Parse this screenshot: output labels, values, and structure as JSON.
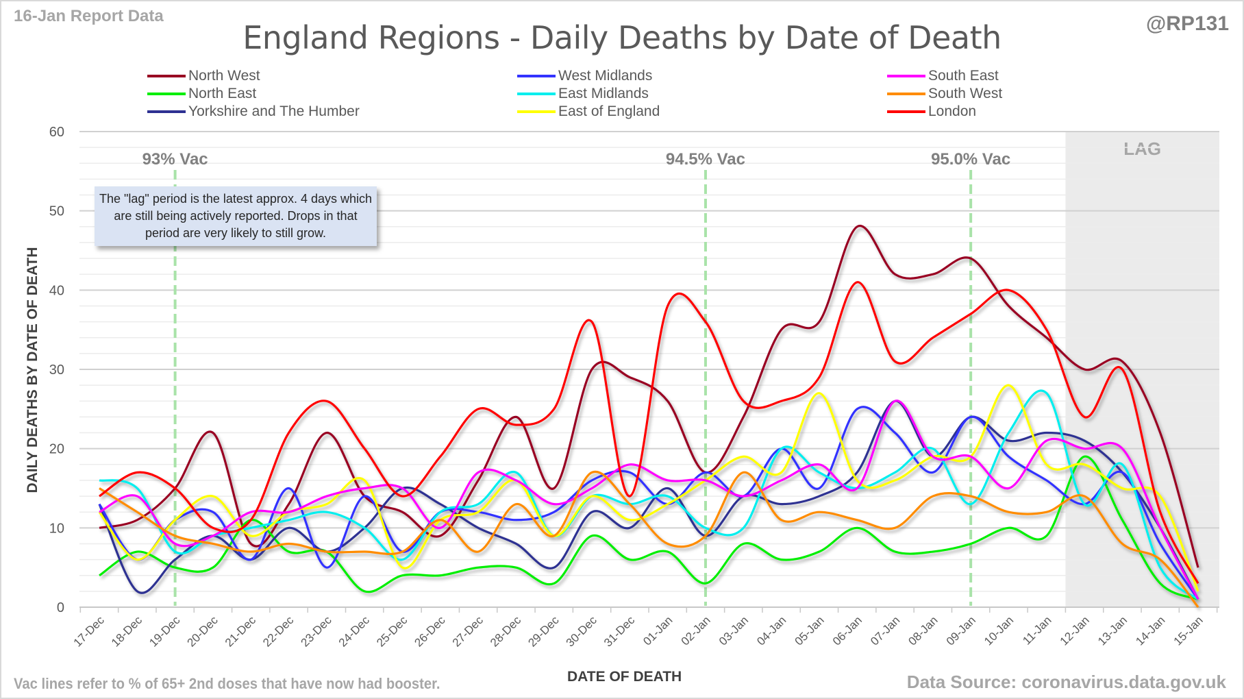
{
  "header": {
    "report_date": "16-Jan Report Data",
    "handle": "@RP131",
    "title": "England Regions - Daily Deaths by Date of Death"
  },
  "footer": {
    "footnote": "Vac lines refer to % of 65+ 2nd doses that have now had booster.",
    "source": "Data Source: coronavirus.data.gov.uk"
  },
  "lag_note": "The \"lag\" period is the latest approx. 4 days which are still being actively reported. Drops in that period are very likely to still grow.",
  "chart_data": {
    "type": "line",
    "title": "England Regions - Daily Deaths by Date of Death",
    "xlabel": "DATE OF DEATH",
    "ylabel": "DAILY DEATHS BY DATE OF DEATH",
    "ylim": [
      0,
      60
    ],
    "yticks": [
      0,
      10,
      20,
      30,
      40,
      50,
      60
    ],
    "minor_grid_step": 2,
    "grid": true,
    "smoothed": true,
    "legend_position": "top",
    "x": [
      "17-Dec",
      "18-Dec",
      "19-Dec",
      "20-Dec",
      "21-Dec",
      "22-Dec",
      "23-Dec",
      "24-Dec",
      "25-Dec",
      "26-Dec",
      "27-Dec",
      "28-Dec",
      "29-Dec",
      "30-Dec",
      "31-Dec",
      "01-Jan",
      "02-Jan",
      "03-Jan",
      "04-Jan",
      "05-Jan",
      "06-Jan",
      "07-Jan",
      "08-Jan",
      "09-Jan",
      "10-Jan",
      "11-Jan",
      "12-Jan",
      "13-Jan",
      "14-Jan",
      "15-Jan"
    ],
    "series": [
      {
        "name": "North West",
        "color": "#990022",
        "values": [
          10,
          11,
          15,
          22,
          8,
          13,
          22,
          14,
          12,
          9,
          16,
          24,
          15,
          30,
          29,
          26,
          17,
          24,
          35,
          36,
          48,
          42,
          42,
          44,
          38,
          34,
          30,
          31,
          22,
          5
        ]
      },
      {
        "name": "North East",
        "color": "#00ee00",
        "values": [
          4,
          7,
          5,
          5,
          11,
          7,
          7,
          2,
          4,
          4,
          5,
          5,
          3,
          9,
          6,
          7,
          3,
          8,
          6,
          7,
          10,
          7,
          7,
          8,
          10,
          9,
          19,
          11,
          3,
          1
        ]
      },
      {
        "name": "Yorkshire and The Humber",
        "color": "#2e3192",
        "values": [
          13,
          2,
          6,
          9,
          6,
          10,
          7,
          10,
          15,
          13,
          10,
          8,
          5,
          12,
          10,
          15,
          9,
          14,
          13,
          14,
          17,
          26,
          19,
          24,
          21,
          22,
          21,
          17,
          10,
          1
        ]
      },
      {
        "name": "West Midlands",
        "color": "#3333ff",
        "values": [
          13,
          6,
          11,
          12,
          6,
          15,
          5,
          14,
          7,
          12,
          12,
          11,
          12,
          16,
          17,
          13,
          17,
          14,
          20,
          15,
          25,
          22,
          17,
          24,
          19,
          16,
          13,
          17,
          8,
          1
        ]
      },
      {
        "name": "East Midlands",
        "color": "#00eeee",
        "values": [
          16,
          15,
          7,
          9,
          10,
          11,
          12,
          10,
          6,
          12,
          13,
          17,
          9,
          14,
          13,
          14,
          10,
          10,
          20,
          17,
          15,
          17,
          20,
          13,
          22,
          27,
          13,
          18,
          5,
          1
        ]
      },
      {
        "name": "East of England",
        "color": "#ffff00",
        "values": [
          12,
          6,
          11,
          14,
          9,
          12,
          13,
          16,
          5,
          11,
          12,
          16,
          9,
          14,
          11,
          13,
          16,
          19,
          17,
          27,
          16,
          16,
          19,
          19,
          28,
          18,
          18,
          15,
          14,
          2
        ]
      },
      {
        "name": "South East",
        "color": "#ff00ff",
        "values": [
          12,
          14,
          8,
          9,
          12,
          12,
          14,
          15,
          15,
          10,
          17,
          16,
          13,
          15,
          18,
          16,
          16,
          14,
          16,
          18,
          15,
          26,
          19,
          19,
          15,
          21,
          20,
          20,
          10,
          1
        ]
      },
      {
        "name": "South West",
        "color": "#ff8c00",
        "values": [
          15,
          12,
          9,
          8,
          7,
          8,
          7,
          7,
          7,
          11,
          7,
          13,
          9,
          17,
          13,
          8,
          9,
          17,
          11,
          12,
          11,
          10,
          14,
          14,
          12,
          12,
          14,
          8,
          6,
          0
        ]
      },
      {
        "name": "London",
        "color": "#ff0000",
        "values": [
          14,
          17,
          15,
          10,
          11,
          22,
          26,
          20,
          14,
          19,
          25,
          23,
          25,
          36,
          14,
          38,
          36,
          26,
          26,
          29,
          41,
          31,
          34,
          37,
          40,
          35,
          24,
          30,
          12,
          3
        ]
      }
    ],
    "vac_lines": [
      {
        "label": "93% Vac",
        "x_index": 2,
        "color": "#a9e3a9"
      },
      {
        "label": "94.5% Vac",
        "x_index": 16,
        "color": "#a9e3a9"
      },
      {
        "label": "95.0% Vac",
        "x_index": 23,
        "color": "#a9e3a9"
      }
    ],
    "lag_region": {
      "label": "LAG",
      "start_index": 25.5,
      "color": "#ebebeb"
    }
  }
}
